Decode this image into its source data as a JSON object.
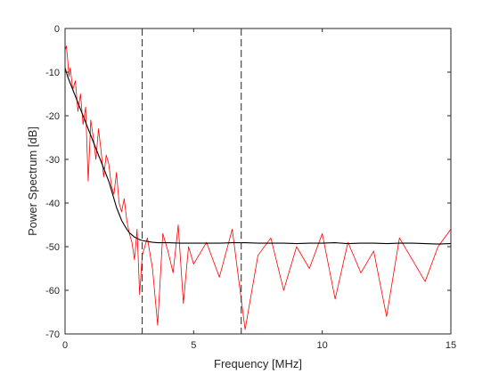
{
  "chart_data": {
    "type": "line",
    "title": "",
    "xlabel": "Frequency [MHz]",
    "ylabel": "Power Spectrum [dB]",
    "xlim": [
      0,
      15
    ],
    "ylim": [
      -70,
      0
    ],
    "xticks": [
      0,
      5,
      10,
      15
    ],
    "yticks": [
      0,
      -10,
      -20,
      -30,
      -40,
      -50,
      -60,
      -70
    ],
    "xtick_labels": [
      "0",
      "5",
      "10",
      "15"
    ],
    "ytick_labels": [
      "0",
      "-10",
      "-20",
      "-30",
      "-40",
      "-50",
      "-60",
      "-70"
    ],
    "grid": false,
    "legend": "none",
    "vlines": [
      3.0,
      6.85
    ],
    "series": [
      {
        "color": "#ff0000",
        "style": "noisy",
        "x": [
          0.0,
          0.05,
          0.1,
          0.15,
          0.2,
          0.3,
          0.4,
          0.5,
          0.6,
          0.7,
          0.8,
          0.9,
          1.0,
          1.1,
          1.2,
          1.3,
          1.4,
          1.5,
          1.6,
          1.7,
          1.8,
          1.9,
          2.0,
          2.1,
          2.2,
          2.3,
          2.4,
          2.5,
          2.6,
          2.7,
          2.8,
          2.9,
          3.0,
          3.2,
          3.4,
          3.6,
          3.8,
          4.0,
          4.2,
          4.4,
          4.6,
          4.8,
          5.0,
          5.5,
          6.0,
          6.5,
          7.0,
          7.5,
          8.0,
          8.5,
          9.0,
          9.5,
          10.0,
          10.5,
          11.0,
          11.5,
          12.0,
          12.5,
          13.0,
          13.5,
          14.0,
          14.5,
          15.0
        ],
        "y": [
          -5,
          -4,
          -7,
          -11,
          -9,
          -14,
          -12,
          -19,
          -15,
          -22,
          -18,
          -35,
          -21,
          -25,
          -30,
          -23,
          -28,
          -34,
          -29,
          -31,
          -36,
          -38,
          -33,
          -40,
          -42,
          -39,
          -44,
          -47,
          -49,
          -53,
          -46,
          -61,
          -52,
          -48,
          -55,
          -68,
          -47,
          -51,
          -56,
          -45,
          -63,
          -50,
          -54,
          -49,
          -57,
          -46,
          -69,
          -52,
          -48,
          -60,
          -50,
          -55,
          -47,
          -62,
          -49,
          -56,
          -51,
          -66,
          -48,
          -53,
          -58,
          -50,
          -46
        ]
      },
      {
        "color": "#000000",
        "style": "smooth",
        "x": [
          0.0,
          0.1,
          0.2,
          0.3,
          0.4,
          0.5,
          0.6,
          0.7,
          0.8,
          0.9,
          1.0,
          1.1,
          1.2,
          1.3,
          1.4,
          1.5,
          1.6,
          1.7,
          1.8,
          1.9,
          2.0,
          2.1,
          2.2,
          2.3,
          2.4,
          2.5,
          2.6,
          2.7,
          2.8,
          2.9,
          3.0,
          3.2,
          3.4,
          3.6,
          3.8,
          4.0,
          4.5,
          5.0,
          5.5,
          6.0,
          6.5,
          7.0,
          7.5,
          8.0,
          8.5,
          9.0,
          9.5,
          10.0,
          10.5,
          11.0,
          11.5,
          12.0,
          12.5,
          13.0,
          13.5,
          14.0,
          14.5,
          15.0
        ],
        "y": [
          -9,
          -11,
          -12.5,
          -14,
          -15.5,
          -17,
          -18.5,
          -20,
          -21.5,
          -23,
          -24.5,
          -26,
          -27.5,
          -29,
          -30.5,
          -32,
          -33.5,
          -35,
          -37,
          -39,
          -41,
          -42.5,
          -44,
          -45,
          -46,
          -46.8,
          -47.3,
          -47.8,
          -48.1,
          -48.4,
          -48.6,
          -48.8,
          -49,
          -49.1,
          -49.1,
          -49.1,
          -49.2,
          -49.2,
          -49.2,
          -49.2,
          -49.1,
          -49.1,
          -49.2,
          -49.2,
          -49.2,
          -49.3,
          -49.2,
          -49.2,
          -49.1,
          -49.3,
          -49.2,
          -49.2,
          -49.3,
          -49.2,
          -49.2,
          -49.3,
          -49.4,
          -49.3
        ]
      }
    ]
  }
}
